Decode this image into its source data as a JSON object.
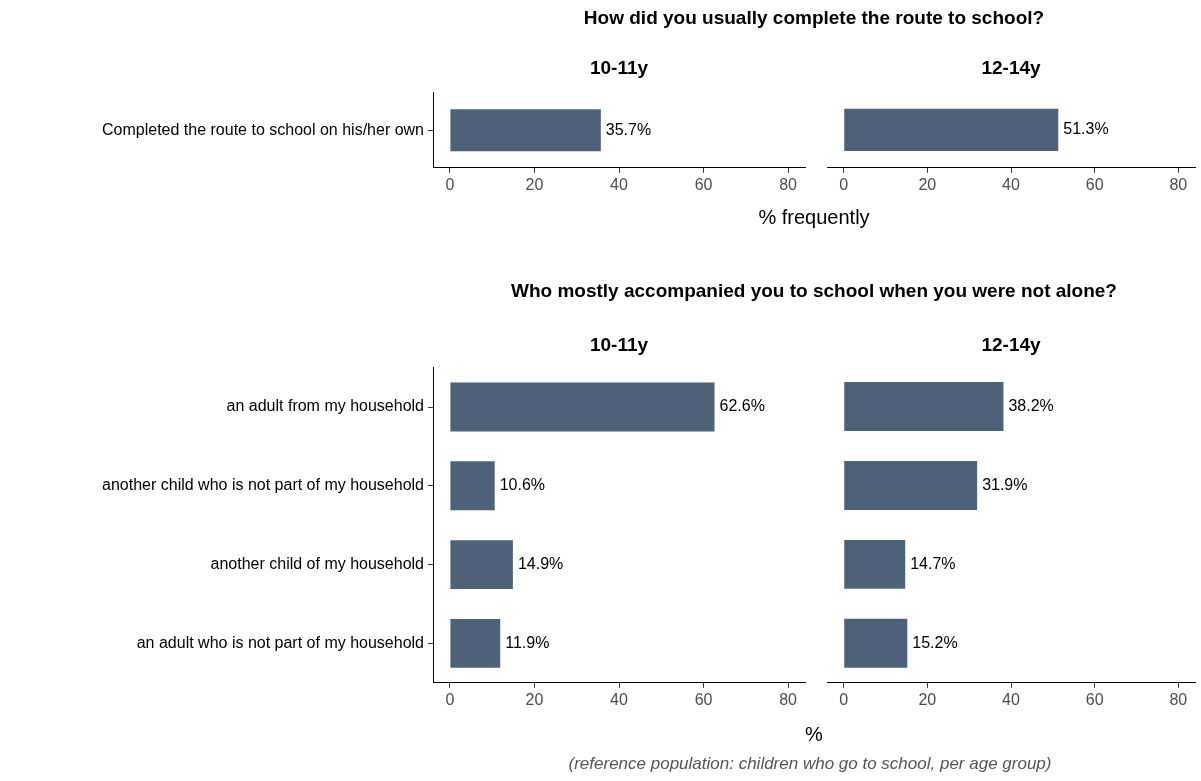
{
  "chart_data": [
    {
      "type": "bar",
      "orientation": "horizontal",
      "title": "How did you usually complete the route to school?",
      "subtitle": "10-11y",
      "xlabel": "% frequently",
      "categories": [
        "Completed the route to school on his/her own"
      ],
      "values": [
        35.7
      ],
      "value_labels": [
        "35.7%"
      ],
      "color": "#4d6278",
      "xlim": [
        -4,
        84
      ],
      "xticks": [
        0,
        20,
        40,
        60,
        80
      ],
      "grid": false,
      "legend": false
    },
    {
      "type": "bar",
      "orientation": "horizontal",
      "subtitle": "12-14y",
      "categories": [
        null
      ],
      "values": [
        51.3
      ],
      "value_labels": [
        "51.3%"
      ],
      "color": "#4d6278",
      "xlim": [
        -4,
        84
      ],
      "xticks": [
        0,
        20,
        40,
        60,
        80
      ],
      "grid": false,
      "legend": false,
      "tick_labels": "x"
    },
    {
      "type": "bar",
      "orientation": "horizontal",
      "title": "Who mostly accompanied you to school when you were not alone?",
      "subtitle": "10-11y",
      "xlabel": "%",
      "annotations": [
        "(reference population: children who go to school, per age group)"
      ],
      "categories": [
        "an adult from my household",
        "another child who is not part of my household",
        "another child of my household",
        "an adult who is not part of my household"
      ],
      "values": [
        62.6,
        10.6,
        14.9,
        11.9
      ],
      "value_labels": [
        "62.6%",
        "10.6%",
        "14.9%",
        "11.9%"
      ],
      "color": "#4d6278",
      "xlim": [
        -4,
        84
      ],
      "xticks": [
        0,
        20,
        40,
        60,
        80
      ],
      "grid": false,
      "legend": false
    },
    {
      "type": "bar",
      "orientation": "horizontal",
      "subtitle": "12-14y",
      "categories": [
        null,
        null,
        null,
        null
      ],
      "values": [
        38.2,
        31.9,
        14.7,
        15.2
      ],
      "value_labels": [
        "38.2%",
        "31.9%",
        "14.7%",
        "15.2%"
      ],
      "color": "#4d6278",
      "xlim": [
        -4,
        84
      ],
      "xticks": [
        0,
        20,
        40,
        60,
        80
      ],
      "grid": false,
      "legend": false,
      "tick_labels": "x"
    }
  ]
}
